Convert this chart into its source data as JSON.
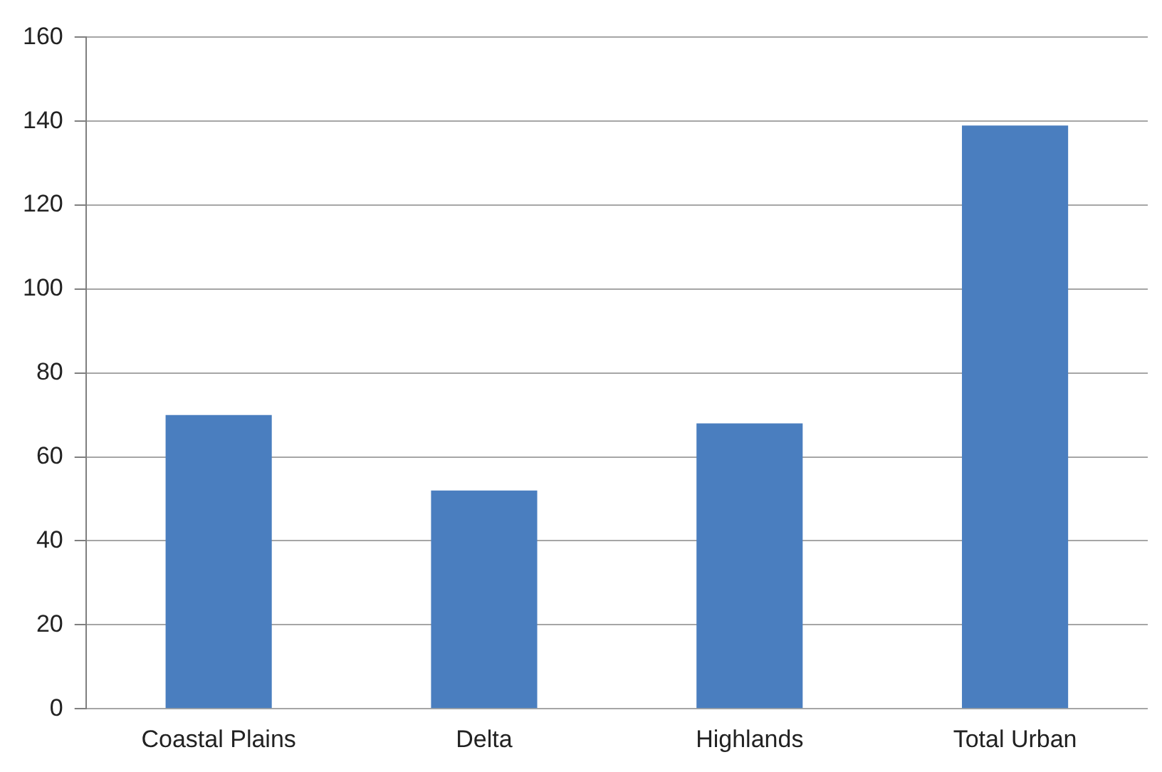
{
  "chart_data": {
    "type": "bar",
    "categories": [
      "Coastal Plains",
      "Delta",
      "Highlands",
      "Total Urban"
    ],
    "values": [
      70,
      52,
      68,
      139
    ],
    "color": "#4a7ebf",
    "ylim": [
      0,
      160
    ],
    "yticks": [
      0,
      20,
      40,
      60,
      80,
      100,
      120,
      140,
      160
    ],
    "grid": "y",
    "legend": false
  }
}
